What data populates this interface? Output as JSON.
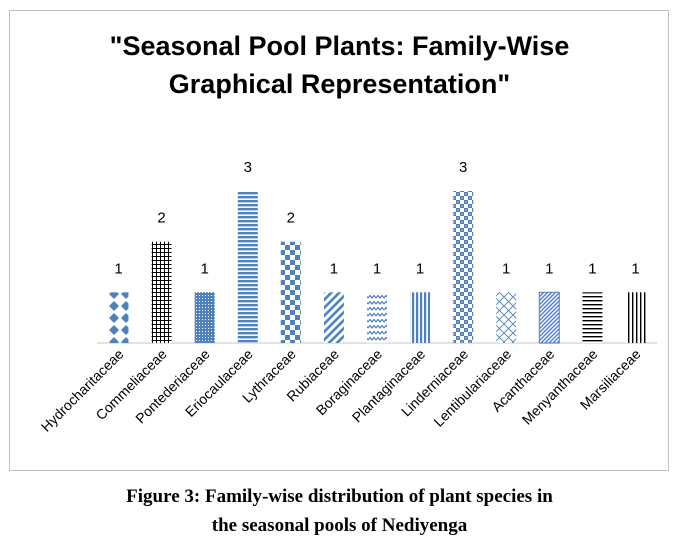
{
  "chart_data": {
    "type": "bar",
    "title": [
      "\"Seasonal Pool Plants: Family-Wise",
      "Graphical Representation\""
    ],
    "categories": [
      "Hydrocharitaceae",
      "Commeliaceae",
      "Pontederiaceae",
      "Eriocaulaceae",
      "Lythraceae",
      "Rubiaceae",
      "Boraginaceae",
      "Plantaginaceae",
      "Linderniaceae",
      "Lentibulariaceae",
      "Acanthaceae",
      "Menyanthaceae",
      "Marsiliaceae"
    ],
    "values": [
      1,
      2,
      1,
      3,
      2,
      1,
      1,
      1,
      3,
      1,
      1,
      1,
      1
    ],
    "data_labels": [
      "1",
      "2",
      "1",
      "3",
      "2",
      "1",
      "1",
      "1",
      "3",
      "1",
      "1",
      "1",
      "1"
    ],
    "patterns": [
      "diamond-dots",
      "black-grid",
      "dense-dots",
      "horizontal-lines",
      "checker",
      "diagonal-stripes",
      "zigzag",
      "vertical-lines",
      "checker-dense",
      "diagonal-cross",
      "dense-diagonal",
      "horizontal-black-lines",
      "vertical-black-lines"
    ],
    "colors": {
      "blue": "#4f81bd",
      "black": "#000000",
      "axis": "#d9d9d9"
    },
    "ylim": [
      0,
      3
    ],
    "grid": false,
    "legend": "none",
    "xlabel": "",
    "ylabel": ""
  },
  "caption": {
    "line1": "Figure 3: Family-wise distribution of plant species in",
    "line2": "the seasonal pools of Nediyenga"
  }
}
